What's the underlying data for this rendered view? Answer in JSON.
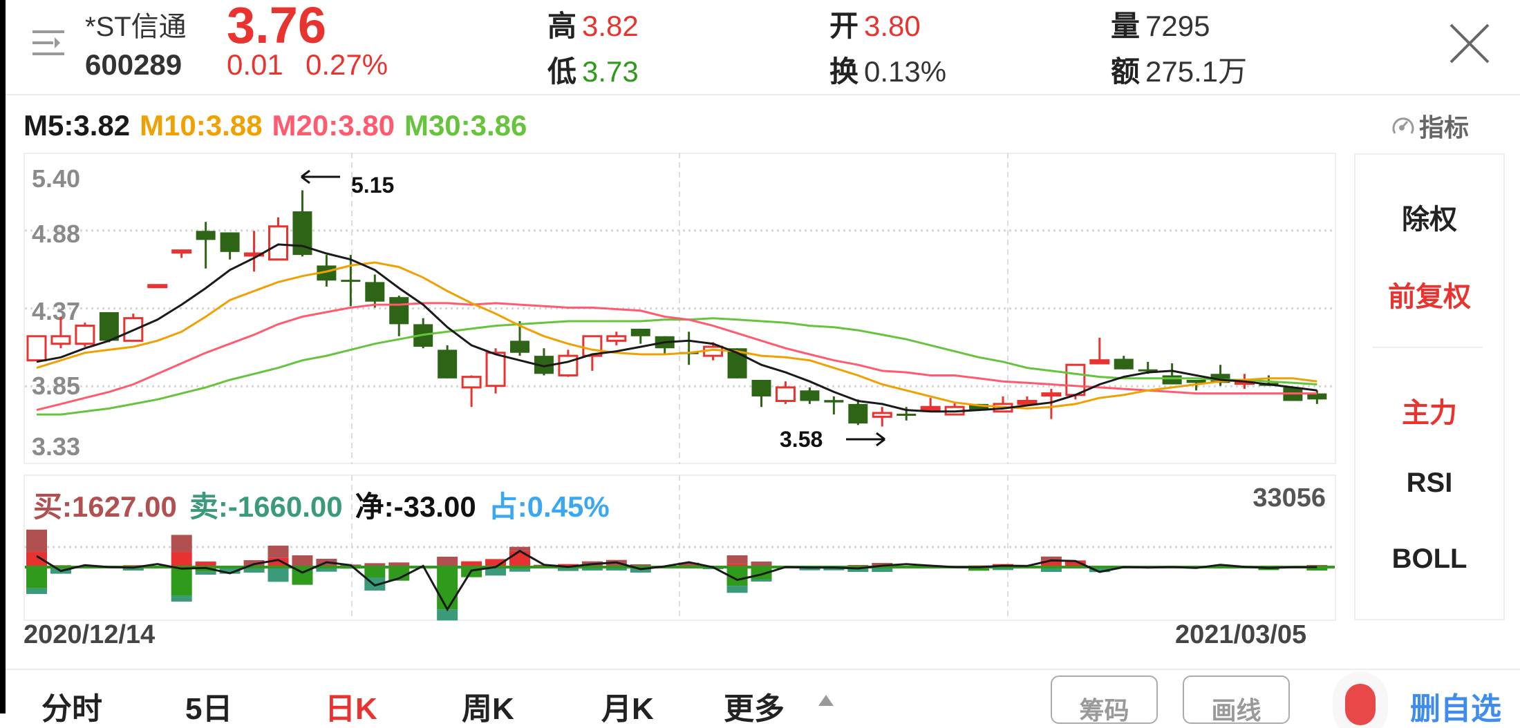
{
  "header": {
    "stock_name": "*ST信通",
    "stock_code": "600289",
    "price": "3.76",
    "change": "0.01",
    "change_pct": "0.27%",
    "high_label": "高",
    "high": "3.82",
    "low_label": "低",
    "low": "3.73",
    "open_label": "开",
    "open": "3.80",
    "turnover_label": "换",
    "turnover": "0.13%",
    "volume_label": "量",
    "volume": "7295",
    "amount_label": "额",
    "amount": "275.1万"
  },
  "ma_legend": {
    "m5": "M5:3.82",
    "m10": "M10:3.88",
    "m20": "M20:3.80",
    "m30": "M30:3.86"
  },
  "indicator_button": "指标",
  "colors": {
    "up": "#e8332f",
    "down": "#2d6416",
    "ma5": "#1a1a1a",
    "ma10": "#f0a000",
    "ma20": "#ff5a6e",
    "ma30": "#66c43c",
    "buy_small": "#e83232",
    "buy_large": "#b05050",
    "sell_small": "#2f9a1c",
    "sell_large": "#3a9a7a",
    "share": "#3aa8f0"
  },
  "chart_data": [
    {
      "type": "candlestick",
      "y_ticks": [
        "5.40",
        "4.88",
        "4.37",
        "3.85",
        "3.33"
      ],
      "ylim": [
        3.33,
        5.4
      ],
      "x_start": "2020/12/14",
      "x_end": "2021/03/05",
      "annotations": {
        "high": "5.15",
        "low": "3.58"
      },
      "ohlc": [
        [
          4.02,
          4.18,
          4.02,
          4.18
        ],
        [
          4.13,
          4.31,
          4.1,
          4.18
        ],
        [
          4.13,
          4.27,
          4.11,
          4.25
        ],
        [
          4.34,
          4.34,
          4.14,
          4.15
        ],
        [
          4.15,
          4.33,
          4.15,
          4.3
        ],
        [
          4.51,
          4.52,
          4.51,
          4.52
        ],
        [
          4.74,
          4.75,
          4.7,
          4.75
        ],
        [
          4.88,
          4.94,
          4.63,
          4.82
        ],
        [
          4.87,
          4.87,
          4.69,
          4.74
        ],
        [
          4.73,
          4.88,
          4.61,
          4.73
        ],
        [
          4.69,
          4.97,
          4.69,
          4.91
        ],
        [
          5.01,
          5.15,
          4.71,
          4.72
        ],
        [
          4.65,
          4.72,
          4.51,
          4.55
        ],
        [
          4.555,
          4.72,
          4.38,
          4.55
        ],
        [
          4.54,
          4.59,
          4.37,
          4.41
        ],
        [
          4.44,
          4.45,
          4.18,
          4.26
        ],
        [
          4.26,
          4.3,
          4.1,
          4.11
        ],
        [
          4.09,
          4.12,
          3.9,
          3.9
        ],
        [
          3.84,
          3.92,
          3.71,
          3.91
        ],
        [
          3.85,
          4.1,
          3.8,
          4.07
        ],
        [
          4.15,
          4.28,
          4.05,
          4.07
        ],
        [
          4.05,
          4.1,
          3.92,
          3.93
        ],
        [
          3.92,
          4.09,
          3.91,
          4.05
        ],
        [
          4.05,
          4.18,
          3.95,
          4.18
        ],
        [
          4.15,
          4.21,
          4.12,
          4.18
        ],
        [
          4.23,
          4.23,
          4.13,
          4.18
        ],
        [
          4.18,
          4.18,
          4.06,
          4.1
        ],
        [
          4.075,
          4.21,
          3.99,
          4.07
        ],
        [
          4.05,
          4.14,
          4.02,
          4.11
        ],
        [
          4.1,
          4.1,
          3.9,
          3.9
        ],
        [
          3.89,
          3.89,
          3.71,
          3.78
        ],
        [
          3.75,
          3.88,
          3.73,
          3.84
        ],
        [
          3.82,
          3.84,
          3.73,
          3.75
        ],
        [
          3.756,
          3.78,
          3.66,
          3.74
        ],
        [
          3.73,
          3.76,
          3.59,
          3.6
        ],
        [
          3.645,
          3.71,
          3.58,
          3.67
        ],
        [
          3.665,
          3.71,
          3.62,
          3.66
        ],
        [
          3.69,
          3.77,
          3.69,
          3.71
        ],
        [
          3.66,
          3.74,
          3.66,
          3.71
        ],
        [
          3.73,
          3.73,
          3.69,
          3.69
        ],
        [
          3.68,
          3.78,
          3.68,
          3.73
        ],
        [
          3.73,
          3.78,
          3.73,
          3.75
        ],
        [
          3.79,
          3.83,
          3.63,
          3.8
        ],
        [
          3.79,
          3.99,
          3.76,
          3.99
        ],
        [
          4.0,
          4.17,
          4.0,
          4.02
        ],
        [
          4.03,
          4.05,
          3.96,
          3.96
        ],
        [
          3.96,
          4.01,
          3.93,
          3.95
        ],
        [
          3.92,
          4.0,
          3.86,
          3.86
        ],
        [
          3.89,
          3.89,
          3.82,
          3.87
        ],
        [
          3.93,
          3.99,
          3.85,
          3.87
        ],
        [
          3.866,
          3.93,
          3.83,
          3.878
        ],
        [
          3.87,
          3.92,
          3.85,
          3.85
        ],
        [
          3.84,
          3.84,
          3.75,
          3.75
        ],
        [
          3.8,
          3.82,
          3.73,
          3.76
        ]
      ],
      "ma5": [
        4.01,
        4.04,
        4.1,
        4.15,
        4.22,
        4.29,
        4.39,
        4.5,
        4.62,
        4.7,
        4.79,
        4.78,
        4.73,
        4.69,
        4.62,
        4.5,
        4.39,
        4.24,
        4.12,
        4.06,
        4.02,
        3.98,
        4.01,
        4.06,
        4.08,
        4.11,
        4.14,
        4.15,
        4.13,
        4.07,
        3.99,
        3.94,
        3.88,
        3.81,
        3.75,
        3.73,
        3.69,
        3.68,
        3.68,
        3.69,
        3.7,
        3.72,
        3.74,
        3.79,
        3.86,
        3.91,
        3.94,
        3.95,
        3.92,
        3.89,
        3.88,
        3.86,
        3.84,
        3.82
      ],
      "ma10": [
        3.97,
        4.02,
        4.07,
        4.09,
        4.11,
        4.15,
        4.21,
        4.31,
        4.42,
        4.48,
        4.54,
        4.58,
        4.61,
        4.65,
        4.67,
        4.64,
        4.57,
        4.48,
        4.4,
        4.33,
        4.25,
        4.18,
        4.13,
        4.09,
        4.07,
        4.06,
        4.06,
        4.07,
        4.09,
        4.08,
        4.05,
        4.04,
        4.02,
        3.97,
        3.92,
        3.86,
        3.82,
        3.78,
        3.74,
        3.72,
        3.71,
        3.7,
        3.71,
        3.73,
        3.77,
        3.79,
        3.82,
        3.84,
        3.86,
        3.88,
        3.89,
        3.9,
        3.9,
        3.88
      ],
      "ma20": [
        3.69,
        3.73,
        3.77,
        3.81,
        3.86,
        3.93,
        4.0,
        4.07,
        4.13,
        4.19,
        4.26,
        4.31,
        4.34,
        4.37,
        4.39,
        4.39,
        4.4,
        4.4,
        4.39,
        4.4,
        4.39,
        4.38,
        4.37,
        4.37,
        4.36,
        4.35,
        4.31,
        4.29,
        4.25,
        4.2,
        4.15,
        4.1,
        4.06,
        4.02,
        3.99,
        3.95,
        3.94,
        3.92,
        3.92,
        3.9,
        3.88,
        3.87,
        3.86,
        3.85,
        3.84,
        3.83,
        3.82,
        3.81,
        3.8,
        3.8,
        3.8,
        3.8,
        3.8,
        3.8
      ],
      "ma30": [
        3.66,
        3.66,
        3.68,
        3.7,
        3.73,
        3.76,
        3.8,
        3.84,
        3.89,
        3.93,
        3.97,
        4.02,
        4.05,
        4.09,
        4.13,
        4.16,
        4.19,
        4.21,
        4.23,
        4.25,
        4.26,
        4.27,
        4.28,
        4.28,
        4.28,
        4.28,
        4.29,
        4.29,
        4.3,
        4.29,
        4.28,
        4.27,
        4.25,
        4.24,
        4.22,
        4.19,
        4.16,
        4.12,
        4.08,
        4.04,
        4.01,
        3.97,
        3.95,
        3.93,
        3.91,
        3.9,
        3.9,
        3.9,
        3.9,
        3.89,
        3.89,
        3.88,
        3.87,
        3.86
      ]
    },
    {
      "type": "bar",
      "title_items": {
        "buy": "买:1627.00",
        "sell": "卖:-1660.00",
        "net": "净:-33.00",
        "share": "占:0.45%"
      },
      "max_label": "33056",
      "reference_level": 33056,
      "series_order": [
        "buy_small",
        "buy_large",
        "sell_small",
        "sell_large"
      ],
      "bars": [
        [
          25300,
          37200,
          35300,
          9600
        ],
        [
          0,
          3100,
          0,
          11100
        ],
        [
          0,
          0,
          0,
          0
        ],
        [
          0,
          0,
          0,
          0
        ],
        [
          3100,
          0,
          0,
          5800
        ],
        [
          0,
          0,
          0,
          0
        ],
        [
          25300,
          28400,
          48000,
          9600
        ],
        [
          9200,
          0,
          7700,
          5000
        ],
        [
          0,
          0,
          0,
          11100
        ],
        [
          0,
          11500,
          0,
          9200
        ],
        [
          15400,
          20400,
          0,
          24600
        ],
        [
          0,
          19600,
          29600,
          0
        ],
        [
          0,
          13800,
          0,
          7700
        ],
        [
          0,
          4200,
          0,
          2700
        ],
        [
          0,
          6500,
          17300,
          21900
        ],
        [
          0,
          7700,
          22700,
          0
        ],
        [
          0,
          2300,
          0,
          0
        ],
        [
          0,
          17300,
          70700,
          18400
        ],
        [
          9600,
          0,
          16900,
          0
        ],
        [
          13400,
          0,
          0,
          14200
        ],
        [
          26900,
          6900,
          0,
          7700
        ],
        [
          0,
          3800,
          0,
          0
        ],
        [
          5000,
          0,
          0,
          6500
        ],
        [
          0,
          9600,
          0,
          5800
        ],
        [
          0,
          11900,
          0,
          5800
        ],
        [
          0,
          4600,
          0,
          9200
        ],
        [
          0,
          0,
          0,
          0
        ],
        [
          0,
          7300,
          0,
          0
        ],
        [
          0,
          1200,
          0,
          3500
        ],
        [
          5400,
          14200,
          31500,
          11500
        ],
        [
          0,
          9200,
          20700,
          3500
        ],
        [
          0,
          0,
          0,
          0
        ],
        [
          0,
          1200,
          0,
          5400
        ],
        [
          0,
          1500,
          0,
          5400
        ],
        [
          0,
          3500,
          0,
          8100
        ],
        [
          0,
          6900,
          0,
          8100
        ],
        [
          0,
          2300,
          0,
          0
        ],
        [
          0,
          0,
          0,
          0
        ],
        [
          0,
          0,
          0,
          0
        ],
        [
          2700,
          0,
          6100,
          0
        ],
        [
          5000,
          0,
          0,
          5000
        ],
        [
          0,
          0,
          0,
          0
        ],
        [
          11100,
          6500,
          0,
          8100
        ],
        [
          11100,
          0,
          0,
          0
        ],
        [
          0,
          0,
          0,
          8400
        ],
        [
          0,
          0,
          0,
          0
        ],
        [
          0,
          0,
          0,
          0
        ],
        [
          0,
          0,
          0,
          0
        ],
        [
          0,
          0,
          0,
          0
        ],
        [
          0,
          0,
          0,
          0
        ],
        [
          0,
          0,
          0,
          0
        ],
        [
          0,
          0,
          5000,
          0
        ],
        [
          0,
          0,
          0,
          0
        ],
        [
          0,
          3500,
          5800,
          0
        ]
      ],
      "net_line": [
        18400,
        -6500,
        3100,
        0,
        -800,
        5000,
        -2700,
        -1500,
        -10400,
        5000,
        11900,
        -9200,
        8100,
        3100,
        -30700,
        -18800,
        1900,
        -70700,
        -5800,
        0,
        26900,
        3800,
        400,
        5000,
        7700,
        -3500,
        1200,
        8100,
        -400,
        -21500,
        -12300,
        0,
        -800,
        -800,
        -2300,
        2300,
        5000,
        2300,
        0,
        -400,
        2300,
        1900,
        11100,
        10000,
        -8100,
        0,
        -800,
        0,
        -1500,
        3800,
        400,
        -1500,
        -400,
        0
      ]
    }
  ],
  "right_panel": {
    "items": [
      "除权",
      "前复权",
      "主力",
      "RSI",
      "BOLL"
    ],
    "active": [
      "前复权",
      "主力"
    ]
  },
  "bottom_tabs": [
    "分时",
    "5日",
    "日K",
    "周K",
    "月K",
    "更多"
  ],
  "active_tab": "日K",
  "buttons": {
    "chips": "筹码",
    "draw": "画线",
    "fav": "删自选"
  }
}
